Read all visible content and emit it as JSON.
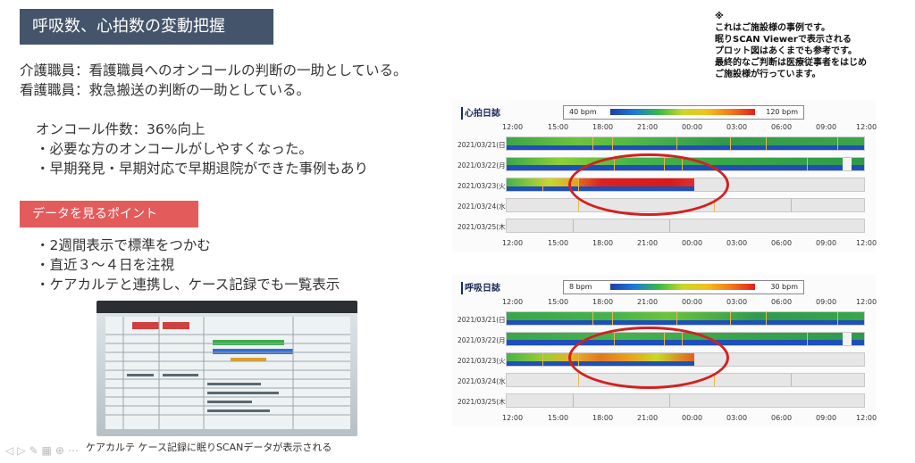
{
  "slide": {
    "title": "呼吸数、心拍数の変動把握",
    "lines": [
      "介護職員：看護職員へのオンコールの判断の一助としている。",
      "看護職員：救急搬送の判断の一助としている。"
    ],
    "oncall": {
      "headline": "オンコール件数：36%向上",
      "bullets": [
        "・必要な方のオンコールがしやすくなった。",
        "・早期発見・早期対応で早期退院ができた事例もあり"
      ]
    },
    "points": {
      "label": "データを見るポイント",
      "bullets": [
        "・2週間表示で標準をつかむ",
        "・直近３～４日を注視",
        "・ケアカルテと連携し、ケース記録でも一覧表示"
      ]
    },
    "note": [
      "※",
      "これはご施設様の事例です。",
      "眠りSCAN Viewerで表示される",
      "プロット図はあくまでも参考です。",
      "最終的なご判断は医療従事者をはじめ",
      "ご施設様が行っています。"
    ],
    "photo_caption": "ケアカルテ ケース記録に眠りSCANデータが表示される"
  },
  "charts": [
    {
      "title": "心拍日誌",
      "legend_min": "40 bpm",
      "legend_max": "120 bpm",
      "time_ticks": [
        "12:00",
        "15:00",
        "18:00",
        "21:00",
        "00:00",
        "03:00",
        "06:00",
        "09:00",
        "12:00"
      ],
      "dates": [
        "2021/03/21(日)",
        "2021/03/22(月)",
        "2021/03/23(火)",
        "2021/03/24(水)",
        "2021/03/25(木)"
      ]
    },
    {
      "title": "呼吸日誌",
      "legend_min": "8 bpm",
      "legend_max": "30 bpm",
      "time_ticks": [
        "12:00",
        "15:00",
        "18:00",
        "21:00",
        "00:00",
        "03:00",
        "06:00",
        "09:00",
        "12:00"
      ],
      "dates": [
        "2021/03/21(日)",
        "2021/03/22(月)",
        "2021/03/23(火)",
        "2021/03/24(水)",
        "2021/03/25(木)"
      ]
    }
  ]
}
